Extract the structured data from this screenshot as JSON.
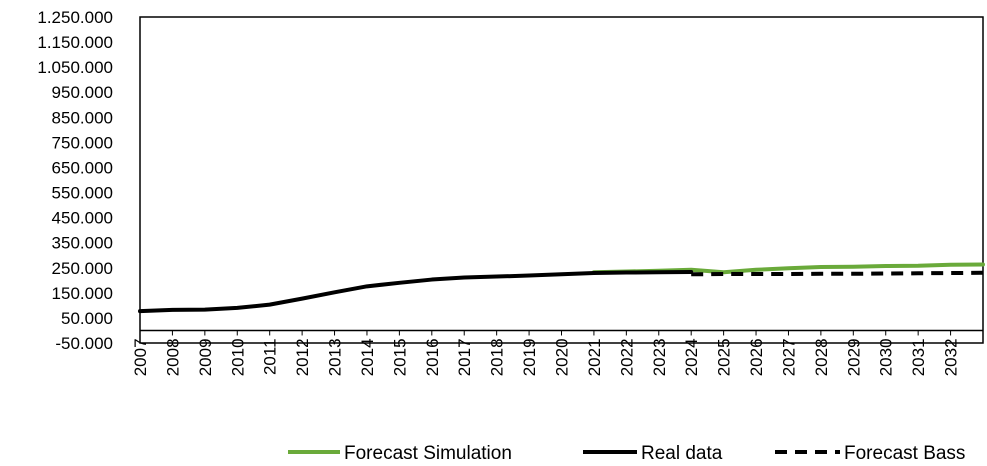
{
  "chart_data": {
    "type": "line",
    "title": "",
    "xlabel": "",
    "ylabel": "",
    "ylim": [
      -50000,
      1250000
    ],
    "y_ticks": [
      "1.250.000",
      "1.150.000",
      "1.050.000",
      "950.000",
      "850.000",
      "750.000",
      "650.000",
      "550.000",
      "450.000",
      "350.000",
      "250.000",
      "150.000",
      "50.000",
      "-50.000"
    ],
    "x": [
      2007,
      2008,
      2009,
      2010,
      2011,
      2012,
      2013,
      2014,
      2015,
      2016,
      2017,
      2018,
      2019,
      2020,
      2021,
      2022,
      2023,
      2024,
      2025,
      2026,
      2027,
      2028,
      2029,
      2030,
      2031,
      2032,
      2033
    ],
    "x_tick_labels": [
      "2007",
      "2008",
      "2009",
      "2010",
      "2011",
      "2012",
      "2013",
      "2014",
      "2015",
      "2016",
      "2017",
      "2018",
      "2019",
      "2020",
      "2021",
      "2022",
      "2023",
      "2024",
      "2025",
      "2026",
      "2027",
      "2028",
      "2029",
      "2030",
      "2031",
      "2032"
    ],
    "grid": false,
    "legend_position": "bottom",
    "series": [
      {
        "name": "Forecast Simulation",
        "color": "#6aaa3a",
        "style": "solid",
        "x": [
          2021,
          2022,
          2023,
          2024,
          2025,
          2026,
          2027,
          2028,
          2029,
          2030,
          2031,
          2032,
          2033
        ],
        "values": [
          232000,
          235000,
          238000,
          242000,
          232000,
          242000,
          248000,
          253000,
          254000,
          257000,
          258000,
          262000,
          263000
        ]
      },
      {
        "name": "Real data",
        "color": "#000000",
        "style": "solid",
        "x": [
          2007,
          2008,
          2009,
          2010,
          2011,
          2012,
          2013,
          2014,
          2015,
          2016,
          2017,
          2018,
          2019,
          2020,
          2021,
          2022,
          2023,
          2024
        ],
        "values": [
          77000,
          82000,
          83000,
          90000,
          103000,
          127000,
          152000,
          176000,
          190000,
          203000,
          211000,
          215000,
          219000,
          224000,
          229000,
          231000,
          232000,
          233000
        ]
      },
      {
        "name": "Forecast Bass",
        "color": "#000000",
        "style": "dashed",
        "x": [
          2024,
          2025,
          2026,
          2027,
          2028,
          2029,
          2030,
          2031,
          2032,
          2033
        ],
        "values": [
          224000,
          225000,
          225000,
          225000,
          226000,
          226000,
          227000,
          228000,
          229000,
          230000
        ]
      }
    ]
  }
}
